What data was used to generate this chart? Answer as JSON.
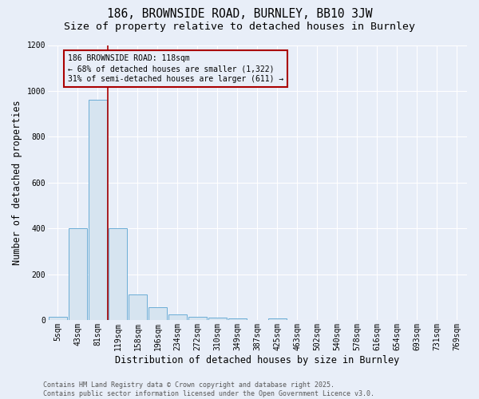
{
  "title1": "186, BROWNSIDE ROAD, BURNLEY, BB10 3JW",
  "title2": "Size of property relative to detached houses in Burnley",
  "xlabel": "Distribution of detached houses by size in Burnley",
  "ylabel": "Number of detached properties",
  "categories": [
    "5sqm",
    "43sqm",
    "81sqm",
    "119sqm",
    "158sqm",
    "196sqm",
    "234sqm",
    "272sqm",
    "310sqm",
    "349sqm",
    "387sqm",
    "425sqm",
    "463sqm",
    "502sqm",
    "540sqm",
    "578sqm",
    "616sqm",
    "654sqm",
    "693sqm",
    "731sqm",
    "769sqm"
  ],
  "values": [
    15,
    400,
    960,
    400,
    110,
    55,
    25,
    15,
    10,
    5,
    0,
    5,
    0,
    0,
    0,
    0,
    0,
    0,
    0,
    0,
    0
  ],
  "bar_color": "#d6e4f0",
  "bar_edge_color": "#6badd6",
  "vline_color": "#aa0000",
  "vline_x": 2.5,
  "annotation_line1": "186 BROWNSIDE ROAD: 118sqm",
  "annotation_line2": "← 68% of detached houses are smaller (1,322)",
  "annotation_line3": "31% of semi-detached houses are larger (611) →",
  "annotation_box_edgecolor": "#aa0000",
  "background_color": "#e8eef8",
  "grid_color": "#ffffff",
  "ylim": [
    0,
    1200
  ],
  "yticks": [
    0,
    200,
    400,
    600,
    800,
    1000,
    1200
  ],
  "footer_line1": "Contains HM Land Registry data © Crown copyright and database right 2025.",
  "footer_line2": "Contains public sector information licensed under the Open Government Licence v3.0.",
  "title1_fontsize": 10.5,
  "title2_fontsize": 9.5,
  "xlabel_fontsize": 8.5,
  "ylabel_fontsize": 8.5,
  "tick_fontsize": 7,
  "annotation_fontsize": 7,
  "footer_fontsize": 6
}
